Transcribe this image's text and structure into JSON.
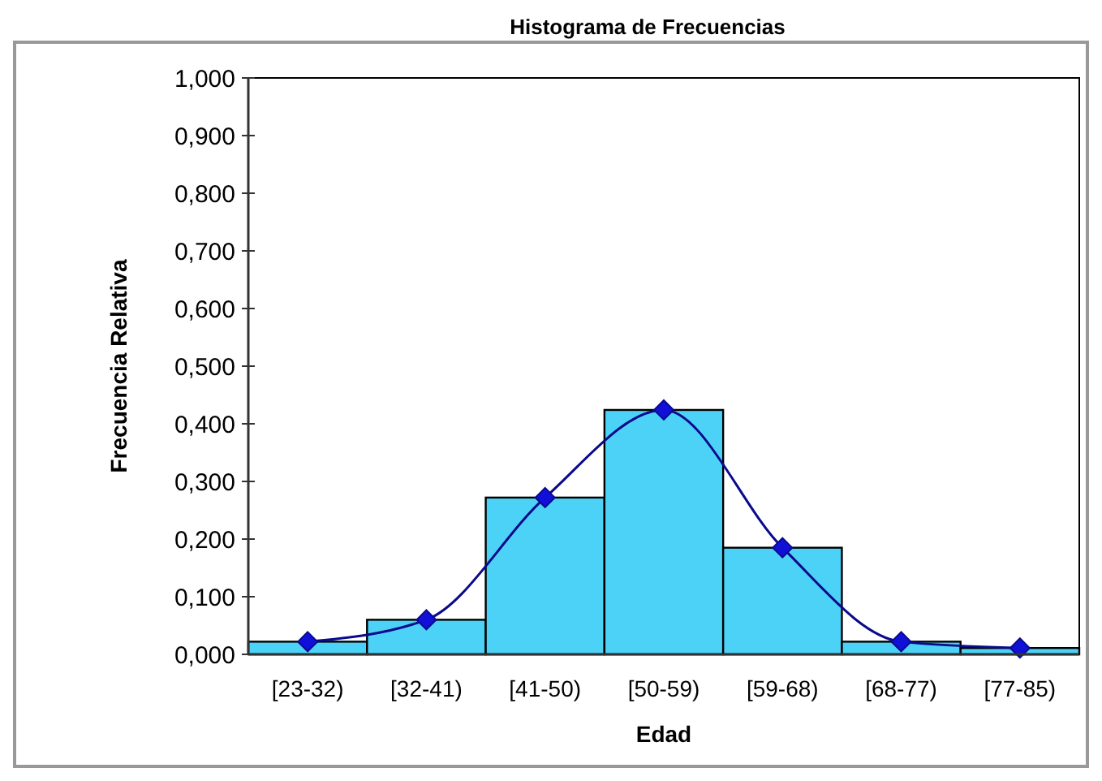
{
  "chart_data": {
    "type": "bar",
    "title": "Histograma de Frecuencias",
    "xlabel": "Edad",
    "ylabel": "Frecuencia Relativa",
    "categories": [
      "[23-32)",
      "[32-41)",
      "[41-50)",
      "[50-59)",
      "[59-68)",
      "[68-77)",
      "[77-85)"
    ],
    "series": [
      {
        "color": "#4dd2f7",
        "values": [
          0.022,
          0.06,
          0.272,
          0.424,
          0.185,
          0.022,
          0.011
        ]
      },
      {
        "type": "line",
        "color": "#0a0a8c",
        "marker": "diamond",
        "values": [
          0.022,
          0.06,
          0.272,
          0.424,
          0.185,
          0.022,
          0.011
        ]
      }
    ],
    "ylim": [
      0,
      1
    ],
    "yticks": [
      {
        "value": 0,
        "label": "0,000"
      },
      {
        "value": 0.1,
        "label": "0,100"
      },
      {
        "value": 0.2,
        "label": "0,200"
      },
      {
        "value": 0.3,
        "label": "0,300"
      },
      {
        "value": 0.4,
        "label": "0,400"
      },
      {
        "value": 0.5,
        "label": "0,500"
      },
      {
        "value": 0.6,
        "label": "0,600"
      },
      {
        "value": 0.7,
        "label": "0,700"
      },
      {
        "value": 0.8,
        "label": "0,800"
      },
      {
        "value": 0.9,
        "label": "0,900"
      },
      {
        "value": 1,
        "label": "1,000"
      }
    ],
    "grid": false
  }
}
